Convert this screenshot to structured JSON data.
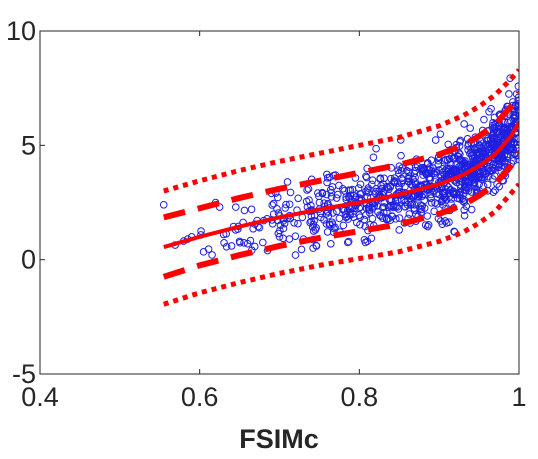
{
  "chart_data": {
    "type": "scatter",
    "title": "",
    "xlabel": "FSIMc",
    "ylabel": "",
    "xlim": [
      0.4,
      1.0
    ],
    "ylim": [
      -5,
      10
    ],
    "x_ticks": [
      0.4,
      0.6,
      0.8,
      1.0
    ],
    "x_tick_labels": [
      "0.4",
      "0.6",
      "0.8",
      "1"
    ],
    "y_ticks": [
      -5,
      0,
      5,
      10
    ],
    "y_tick_labels": [
      "-5",
      "0",
      "5",
      "10"
    ],
    "grid": false,
    "legend": "none",
    "colors": {
      "points": "#1f1fe0",
      "fit": "#ff0000",
      "axes": "#262626"
    },
    "scatter_series": {
      "marker": "open-circle",
      "point_count_estimate": 1000,
      "x_range": [
        0.555,
        1.0
      ],
      "points_sample": [
        [
          0.555,
          2.4
        ],
        [
          0.585,
          0.9
        ],
        [
          0.59,
          1.0
        ],
        [
          0.62,
          2.5
        ],
        [
          0.625,
          2.3
        ],
        [
          0.63,
          1.1
        ],
        [
          0.64,
          0.6
        ],
        [
          0.645,
          1.3
        ],
        [
          0.65,
          0.8
        ],
        [
          0.66,
          0.7
        ],
        [
          0.665,
          2.2
        ],
        [
          0.675,
          1.4
        ],
        [
          0.685,
          0.4
        ],
        [
          0.69,
          2.9
        ],
        [
          0.7,
          1.0
        ],
        [
          0.705,
          1.8
        ],
        [
          0.71,
          3.4
        ],
        [
          0.72,
          0.2
        ],
        [
          0.73,
          0.9
        ],
        [
          0.74,
          1.9
        ],
        [
          0.75,
          2.5
        ],
        [
          0.76,
          2.1
        ],
        [
          0.77,
          3.7
        ],
        [
          0.78,
          1.5
        ],
        [
          0.79,
          2.3
        ],
        [
          0.8,
          2.7
        ],
        [
          0.81,
          0.8
        ],
        [
          0.82,
          2.9
        ],
        [
          0.83,
          3.3
        ],
        [
          0.84,
          2.6
        ],
        [
          0.85,
          1.3
        ],
        [
          0.86,
          2.8
        ],
        [
          0.87,
          3.4
        ],
        [
          0.88,
          3.9
        ],
        [
          0.89,
          2.7
        ],
        [
          0.9,
          3.3
        ],
        [
          0.91,
          4.0
        ],
        [
          0.92,
          3.6
        ],
        [
          0.93,
          4.3
        ],
        [
          0.94,
          5.1
        ],
        [
          0.95,
          4.6
        ],
        [
          0.96,
          5.2
        ],
        [
          0.965,
          6.6
        ],
        [
          0.97,
          5.7
        ],
        [
          0.975,
          4.9
        ],
        [
          0.98,
          6.0
        ],
        [
          0.985,
          6.7
        ],
        [
          0.99,
          5.5
        ],
        [
          0.995,
          6.3
        ],
        [
          1.0,
          6.5
        ]
      ]
    },
    "fit_line": {
      "style": "solid",
      "x": [
        0.555,
        0.6,
        0.65,
        0.7,
        0.75,
        0.8,
        0.85,
        0.9,
        0.93,
        0.95,
        0.97,
        0.98,
        0.99,
        1.0
      ],
      "y": [
        0.55,
        1.0,
        1.45,
        1.85,
        2.2,
        2.5,
        2.85,
        3.3,
        3.7,
        4.1,
        4.6,
        5.0,
        5.4,
        6.0
      ]
    },
    "inner_bounds": {
      "style": "dashed",
      "upper": {
        "x": [
          0.555,
          0.6,
          0.65,
          0.7,
          0.75,
          0.8,
          0.85,
          0.9,
          0.93,
          0.95,
          0.97,
          0.98,
          0.99,
          1.0
        ],
        "y": [
          1.85,
          2.25,
          2.7,
          3.1,
          3.45,
          3.8,
          4.15,
          4.6,
          5.0,
          5.4,
          5.9,
          6.3,
          6.7,
          7.3
        ]
      },
      "lower": {
        "x": [
          0.555,
          0.6,
          0.65,
          0.7,
          0.75,
          0.8,
          0.85,
          0.9,
          0.93,
          0.95,
          0.97,
          0.98,
          0.99,
          1.0
        ],
        "y": [
          -0.75,
          -0.25,
          0.2,
          0.6,
          0.95,
          1.25,
          1.55,
          2.0,
          2.4,
          2.8,
          3.3,
          3.7,
          4.1,
          4.7
        ]
      }
    },
    "outer_bounds": {
      "style": "dotted",
      "upper": {
        "x": [
          0.555,
          0.6,
          0.65,
          0.7,
          0.75,
          0.8,
          0.85,
          0.9,
          0.93,
          0.95,
          0.97,
          0.98,
          0.99,
          1.0
        ],
        "y": [
          3.0,
          3.45,
          3.9,
          4.3,
          4.65,
          5.0,
          5.35,
          5.85,
          6.3,
          6.7,
          7.2,
          7.55,
          7.9,
          8.3
        ]
      },
      "lower": {
        "x": [
          0.555,
          0.6,
          0.65,
          0.7,
          0.75,
          0.8,
          0.85,
          0.9,
          0.93,
          0.95,
          0.97,
          0.98,
          0.99,
          1.0
        ],
        "y": [
          -1.95,
          -1.45,
          -1.0,
          -0.6,
          -0.25,
          0.05,
          0.35,
          0.8,
          1.2,
          1.6,
          2.1,
          2.5,
          2.9,
          3.3
        ]
      }
    }
  }
}
